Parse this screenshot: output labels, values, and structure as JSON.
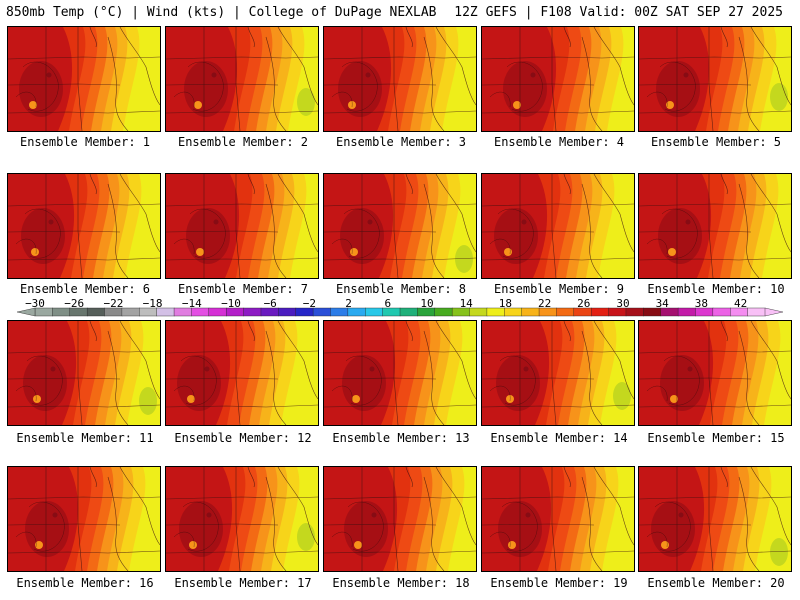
{
  "header": {
    "left": "850mb Temp (°C) | Wind (kts) | College of DuPage NEXLAB",
    "right": "12Z GEFS | F108 Valid: 00Z SAT SEP 27 2025"
  },
  "members": [
    {
      "label": "Ensemble Member: 1"
    },
    {
      "label": "Ensemble Member: 2"
    },
    {
      "label": "Ensemble Member: 3"
    },
    {
      "label": "Ensemble Member: 4"
    },
    {
      "label": "Ensemble Member: 5"
    },
    {
      "label": "Ensemble Member: 6"
    },
    {
      "label": "Ensemble Member: 7"
    },
    {
      "label": "Ensemble Member: 8"
    },
    {
      "label": "Ensemble Member: 9"
    },
    {
      "label": "Ensemble Member: 10"
    },
    {
      "label": "Ensemble Member: 11"
    },
    {
      "label": "Ensemble Member: 12"
    },
    {
      "label": "Ensemble Member: 13"
    },
    {
      "label": "Ensemble Member: 14"
    },
    {
      "label": "Ensemble Member: 15"
    },
    {
      "label": "Ensemble Member: 16"
    },
    {
      "label": "Ensemble Member: 17"
    },
    {
      "label": "Ensemble Member: 18"
    },
    {
      "label": "Ensemble Member: 19"
    },
    {
      "label": "Ensemble Member: 20"
    }
  ],
  "colorbar": {
    "ticks": [
      "−30",
      "−26",
      "−22",
      "−18",
      "−14",
      "−10",
      "−6",
      "−2",
      "2",
      "6",
      "10",
      "14",
      "18",
      "22",
      "26",
      "30",
      "34",
      "38",
      "42"
    ],
    "colors": [
      "#9aa8a0",
      "#7f8f86",
      "#68766e",
      "#565f5a",
      "#8a8a8a",
      "#a3a3a3",
      "#bdbdbd",
      "#d3c0e6",
      "#e07de0",
      "#e34fe3",
      "#d52fd5",
      "#b31fc9",
      "#8d1bc4",
      "#6a1ac0",
      "#4b1cc0",
      "#2626c8",
      "#2a4fd8",
      "#2c7de8",
      "#2aaaf0",
      "#28c8e8",
      "#20c8b0",
      "#1fb07a",
      "#2aa43c",
      "#48ab20",
      "#86c21c",
      "#c4d81e",
      "#eeee1a",
      "#f7d41a",
      "#f7b31a",
      "#f7931a",
      "#f36a14",
      "#ea4414",
      "#e32014",
      "#c8141a",
      "#a6101a",
      "#870c14",
      "#a51070",
      "#c31aa8",
      "#dc36cf",
      "#ec62e6",
      "#f48cf0",
      "#f8c0f6"
    ]
  }
}
